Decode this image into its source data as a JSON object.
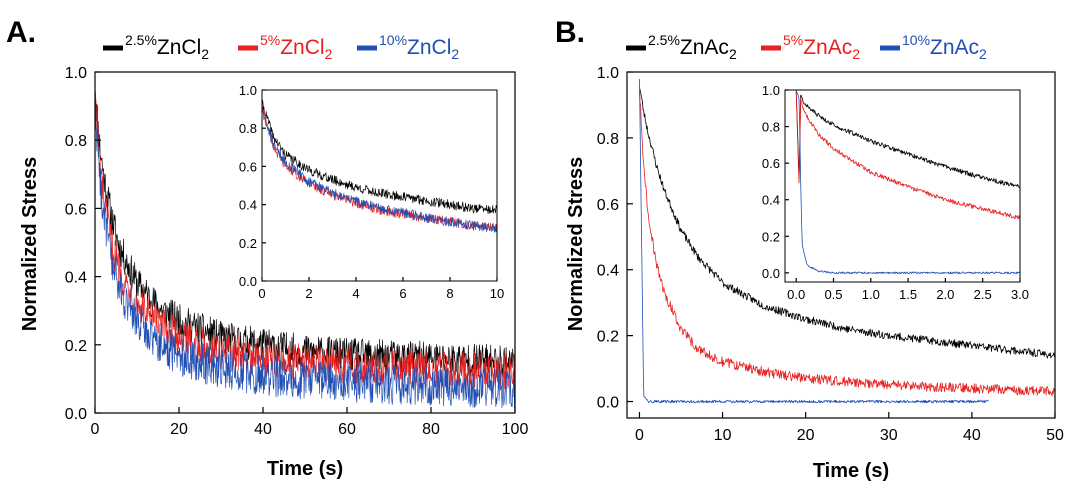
{
  "panels": [
    {
      "letter": "A.",
      "xlabel": "Time (s)",
      "ylabel": "Normalized Stress",
      "legend": [
        {
          "sup": "2.5%",
          "base": "ZnCl",
          "sub": "2",
          "color": "#000000"
        },
        {
          "sup": "5%",
          "base": "ZnCl",
          "sub": "2",
          "color": "#e8201f"
        },
        {
          "sup": "10%",
          "base": "ZnCl",
          "sub": "2",
          "color": "#1f4fb4"
        }
      ]
    },
    {
      "letter": "B.",
      "xlabel": "Time (s)",
      "ylabel": "Normalized Stress",
      "legend": [
        {
          "sup": "2.5%",
          "base": "ZnAc",
          "sub": "2",
          "color": "#000000"
        },
        {
          "sup": "5%",
          "base": "ZnAc",
          "sub": "2",
          "color": "#e8201f"
        },
        {
          "sup": "10%",
          "base": "ZnAc",
          "sub": "2",
          "color": "#1f4fb4"
        }
      ]
    }
  ],
  "chart_data": [
    {
      "type": "line",
      "panel": "A.",
      "xlabel": "Time (s)",
      "ylabel": "Normalized Stress",
      "xlim": [
        0,
        100
      ],
      "ylim": [
        0,
        1.0
      ],
      "xticks": [
        0,
        20,
        40,
        60,
        80,
        100
      ],
      "yticks": [
        0.0,
        0.2,
        0.4,
        0.6,
        0.8,
        1.0
      ],
      "x": [
        0,
        1,
        2,
        4,
        6,
        10,
        15,
        20,
        30,
        40,
        50,
        60,
        80,
        100
      ],
      "series": [
        {
          "name": "2.5%ZnCl2",
          "color": "#000000",
          "noise": 0.05,
          "values": [
            0.95,
            0.8,
            0.7,
            0.57,
            0.48,
            0.38,
            0.31,
            0.27,
            0.22,
            0.2,
            0.18,
            0.17,
            0.16,
            0.15
          ]
        },
        {
          "name": "5%ZnCl2",
          "color": "#e8201f",
          "noise": 0.055,
          "values": [
            0.93,
            0.75,
            0.63,
            0.49,
            0.41,
            0.32,
            0.26,
            0.22,
            0.18,
            0.16,
            0.15,
            0.14,
            0.13,
            0.12
          ]
        },
        {
          "name": "10%ZnCl2",
          "color": "#1f4fb4",
          "noise": 0.06,
          "values": [
            0.92,
            0.71,
            0.59,
            0.44,
            0.36,
            0.27,
            0.21,
            0.17,
            0.13,
            0.11,
            0.1,
            0.09,
            0.08,
            0.07
          ]
        }
      ],
      "inset": {
        "xlim": [
          0,
          10
        ],
        "ylim": [
          0,
          1.0
        ],
        "xticks": [
          0,
          2,
          4,
          6,
          8,
          10
        ],
        "yticks": [
          0.0,
          0.2,
          0.4,
          0.6,
          0.8,
          1.0
        ],
        "x": [
          0,
          0.5,
          1,
          2,
          3,
          4,
          5,
          6,
          7,
          8,
          9,
          10
        ],
        "series": [
          {
            "name": "2.5%ZnCl2",
            "color": "#000000",
            "noise": 0.025,
            "values": [
              0.93,
              0.75,
              0.66,
              0.58,
              0.53,
              0.49,
              0.46,
              0.44,
              0.42,
              0.4,
              0.38,
              0.37
            ]
          },
          {
            "name": "5%ZnCl2",
            "color": "#e8201f",
            "noise": 0.025,
            "values": [
              0.91,
              0.7,
              0.6,
              0.51,
              0.45,
              0.41,
              0.37,
              0.35,
              0.33,
              0.31,
              0.29,
              0.28
            ]
          },
          {
            "name": "10%ZnCl2",
            "color": "#1f4fb4",
            "noise": 0.025,
            "values": [
              0.9,
              0.71,
              0.62,
              0.52,
              0.46,
              0.42,
              0.38,
              0.36,
              0.33,
              0.31,
              0.29,
              0.27
            ]
          }
        ]
      }
    },
    {
      "type": "line",
      "panel": "B.",
      "xlabel": "Time (s)",
      "ylabel": "Normalized Stress",
      "xlim": [
        -1.5,
        50
      ],
      "ylim": [
        -0.05,
        1.0
      ],
      "xticks": [
        0,
        10,
        20,
        30,
        40,
        50
      ],
      "yticks": [
        0.0,
        0.2,
        0.4,
        0.6,
        0.8,
        1.0
      ],
      "x": [
        0,
        0.5,
        1,
        2,
        3,
        5,
        7,
        10,
        15,
        20,
        25,
        30,
        40,
        50
      ],
      "series": [
        {
          "name": "2.5%ZnAc2",
          "color": "#000000",
          "noise": 0.012,
          "values": [
            0.96,
            0.88,
            0.82,
            0.72,
            0.64,
            0.52,
            0.44,
            0.36,
            0.29,
            0.25,
            0.22,
            0.2,
            0.17,
            0.14
          ]
        },
        {
          "name": "5%ZnAc2",
          "color": "#e8201f",
          "noise": 0.015,
          "values": [
            0.95,
            0.72,
            0.58,
            0.42,
            0.33,
            0.22,
            0.16,
            0.12,
            0.09,
            0.07,
            0.06,
            0.05,
            0.04,
            0.03
          ]
        },
        {
          "name": "10%ZnAc2",
          "color": "#1f4fb4",
          "noise": 0.004,
          "xmax": 42,
          "values": [
            0.98,
            0.02,
            0.0,
            0.0,
            0.0,
            0.0,
            0.0,
            0.0,
            0.0,
            0.0,
            0.0,
            0.0,
            0.0,
            0.0
          ]
        }
      ],
      "inset": {
        "xlim": [
          -0.15,
          3.0
        ],
        "ylim": [
          -0.05,
          1.0
        ],
        "xticks": [
          0.0,
          0.5,
          1.0,
          1.5,
          2.0,
          2.5,
          3.0
        ],
        "xtick_labels": [
          "0.0",
          "0.5",
          "1.0",
          "1.5",
          "2.0",
          "2.5",
          "3.0"
        ],
        "yticks": [
          0.0,
          0.2,
          0.4,
          0.6,
          0.8,
          1.0
        ],
        "x": [
          0,
          0.04,
          0.06,
          0.08,
          0.15,
          0.3,
          0.5,
          1.0,
          1.5,
          2.0,
          2.5,
          3.0
        ],
        "series": [
          {
            "name": "2.5%ZnAc2",
            "color": "#000000",
            "noise": 0.012,
            "values": [
              1.0,
              0.5,
              0.97,
              0.95,
              0.91,
              0.86,
              0.81,
              0.72,
              0.65,
              0.58,
              0.52,
              0.47
            ]
          },
          {
            "name": "5%ZnAc2",
            "color": "#e8201f",
            "noise": 0.012,
            "values": [
              1.0,
              0.45,
              0.95,
              0.92,
              0.85,
              0.76,
              0.68,
              0.55,
              0.47,
              0.4,
              0.35,
              0.3
            ]
          },
          {
            "name": "10%ZnAc2",
            "color": "#1f4fb4",
            "noise": 0.005,
            "values": [
              1.0,
              0.95,
              0.5,
              0.15,
              0.04,
              0.01,
              0.0,
              0.0,
              0.0,
              0.0,
              0.0,
              0.0
            ]
          }
        ]
      }
    }
  ]
}
